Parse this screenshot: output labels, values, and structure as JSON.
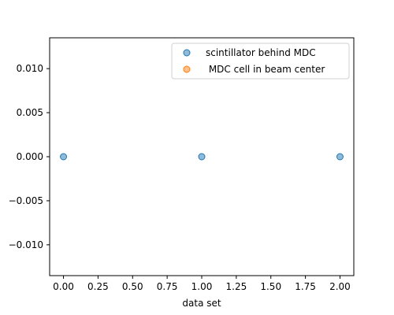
{
  "chart_data": {
    "type": "scatter",
    "title": "",
    "xlabel": "data set",
    "ylabel": "",
    "xlim": [
      -0.1,
      2.1
    ],
    "ylim": [
      -0.0135,
      0.0135
    ],
    "xticks": [
      0.0,
      0.25,
      0.5,
      0.75,
      1.0,
      1.25,
      1.5,
      1.75,
      2.0
    ],
    "xtick_labels": [
      "0.00",
      "0.25",
      "0.50",
      "0.75",
      "1.00",
      "1.25",
      "1.50",
      "1.75",
      "2.00"
    ],
    "yticks": [
      0.01,
      0.005,
      0.0,
      -0.005,
      -0.01
    ],
    "ytick_labels": [
      "0.010",
      "0.005",
      "0.000",
      "−0.005",
      "−0.010"
    ],
    "grid": false,
    "legend_position": "top-right",
    "series": [
      {
        "name": "scintillator behind MDC",
        "color": "#1f77b4",
        "x": [
          0,
          1,
          2
        ],
        "y": [
          0.0,
          0.0,
          0.0
        ]
      },
      {
        "name": " MDC cell in beam center",
        "color": "#ff7f0e",
        "x": [],
        "y": []
      }
    ]
  }
}
